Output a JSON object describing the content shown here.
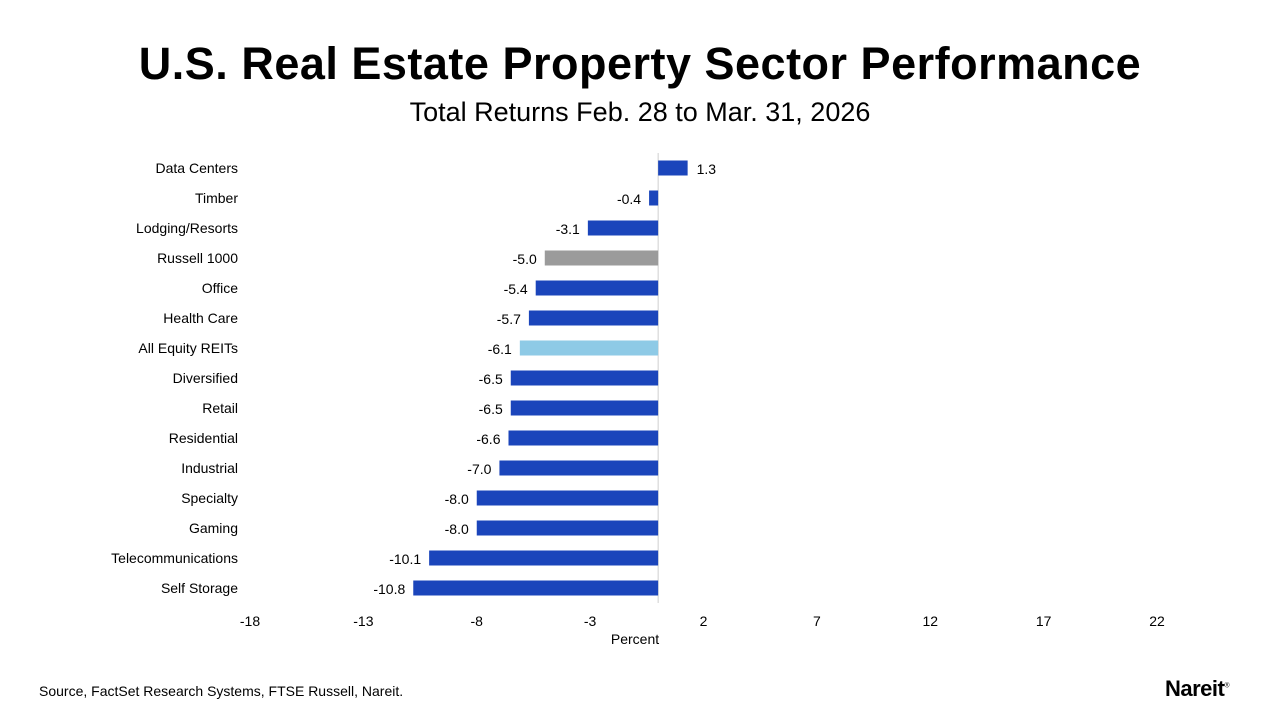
{
  "chart_data": {
    "type": "bar",
    "orientation": "horizontal",
    "title": "U.S. Real Estate Property Sector Performance",
    "subtitle": "Total Returns Feb. 28 to Mar. 31, 2026",
    "xlabel": "Percent",
    "xlim": [
      -18,
      22
    ],
    "xticks": [
      -18,
      -13,
      -8,
      -3,
      2,
      7,
      12,
      17,
      22
    ],
    "grid": false,
    "categories": [
      "Data Centers",
      "Timber",
      "Lodging/Resorts",
      "Russell 1000",
      "Office",
      "Health Care",
      "All Equity REITs",
      "Diversified",
      "Retail",
      "Residential",
      "Industrial",
      "Specialty",
      "Gaming",
      "Telecommunications",
      "Self Storage"
    ],
    "values": [
      1.3,
      -0.4,
      -3.1,
      -5.0,
      -5.4,
      -5.7,
      -6.1,
      -6.5,
      -6.5,
      -6.6,
      -7.0,
      -8.0,
      -8.0,
      -10.1,
      -10.8
    ],
    "colors": {
      "default": "#1b45bb",
      "Russell 1000": "#9b9b9b",
      "All Equity REITs": "#8ecae6"
    }
  },
  "footer": {
    "source": "Source, FactSet Research Systems, FTSE Russell, Nareit.",
    "logo": "Nareit",
    "logo_mark": "®"
  }
}
